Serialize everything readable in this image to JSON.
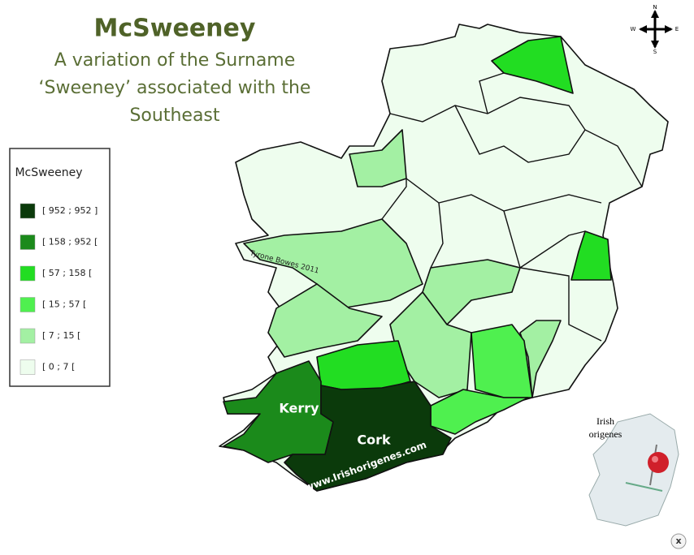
{
  "header": {
    "title": "McSweeney",
    "subtitle": [
      "A variation of the Surname",
      "‘Sweeney’ associated with the",
      "Southeast"
    ]
  },
  "legend": {
    "title": "McSweeney",
    "items": [
      {
        "label": "[ 952 ; 952 ]",
        "color": "#0b3a0b"
      },
      {
        "label": "[ 158 ; 952 [",
        "color": "#1b8a1b"
      },
      {
        "label": "[ 57 ; 158 [",
        "color": "#22dd22"
      },
      {
        "label": "[ 15 ; 57 [",
        "color": "#4ff04f"
      },
      {
        "label": "[ 7 ; 15 [",
        "color": "#a3f0a3"
      },
      {
        "label": "[ 0 ; 7 [",
        "color": "#eefdee"
      }
    ]
  },
  "map": {
    "labels": {
      "kerry": "Kerry",
      "cork": "Cork",
      "website": "www.Irishorigenes.com",
      "credit": "Tyrone Bowes 2011"
    },
    "compass": {
      "n": "N",
      "e": "E",
      "s": "S",
      "w": "W"
    },
    "inset": {
      "title": [
        "Irish",
        "origenes"
      ]
    }
  },
  "controls": {
    "close": "x"
  }
}
